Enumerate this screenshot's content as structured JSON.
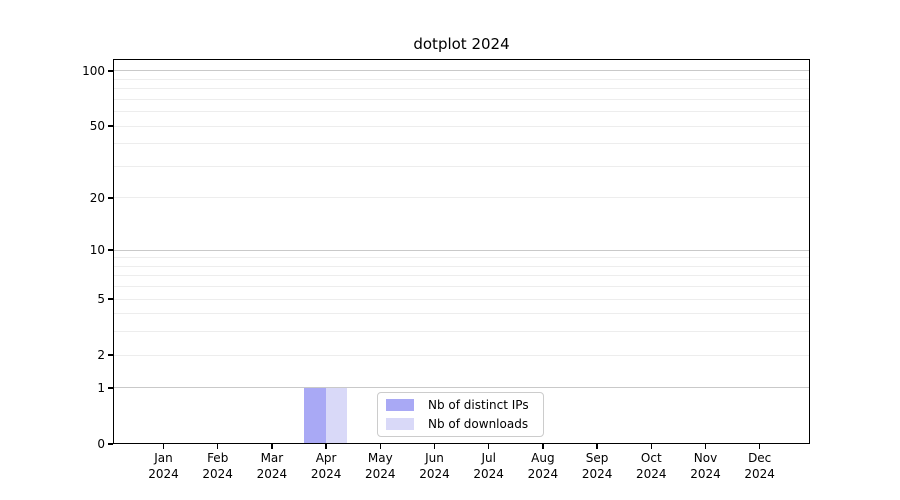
{
  "chart_data": {
    "type": "bar",
    "title": "dotplot 2024",
    "categories": [
      [
        "Jan",
        "2024"
      ],
      [
        "Feb",
        "2024"
      ],
      [
        "Mar",
        "2024"
      ],
      [
        "Apr",
        "2024"
      ],
      [
        "May",
        "2024"
      ],
      [
        "Jun",
        "2024"
      ],
      [
        "Jul",
        "2024"
      ],
      [
        "Aug",
        "2024"
      ],
      [
        "Sep",
        "2024"
      ],
      [
        "Oct",
        "2024"
      ],
      [
        "Nov",
        "2024"
      ],
      [
        "Dec",
        "2024"
      ]
    ],
    "series": [
      {
        "name": "Nb of distinct IPs",
        "color": "#a9a9f5",
        "values": [
          0,
          0,
          0,
          1,
          0,
          0,
          0,
          0,
          0,
          0,
          0,
          0
        ]
      },
      {
        "name": "Nb of downloads",
        "color": "#d9d9f8",
        "values": [
          0,
          0,
          0,
          1,
          0,
          0,
          0,
          0,
          0,
          0,
          0,
          0
        ]
      }
    ],
    "xlabel": "",
    "ylabel": "",
    "yscale": "log1p",
    "ylim": [
      0,
      116
    ],
    "yticks": [
      0,
      1,
      2,
      5,
      10,
      20,
      50,
      100
    ],
    "major_gridlines": [
      1,
      10,
      100
    ],
    "minor_gridlines": [
      2,
      3,
      4,
      5,
      6,
      7,
      8,
      9,
      20,
      30,
      40,
      50,
      60,
      70,
      80,
      90
    ],
    "grid": "horizontal",
    "legend_position": "lower center",
    "colors": {
      "axis": "#000000",
      "text": "#000000",
      "grid_major": "#c9c9c9",
      "grid_minor": "#ededed",
      "background": "#ffffff"
    }
  }
}
